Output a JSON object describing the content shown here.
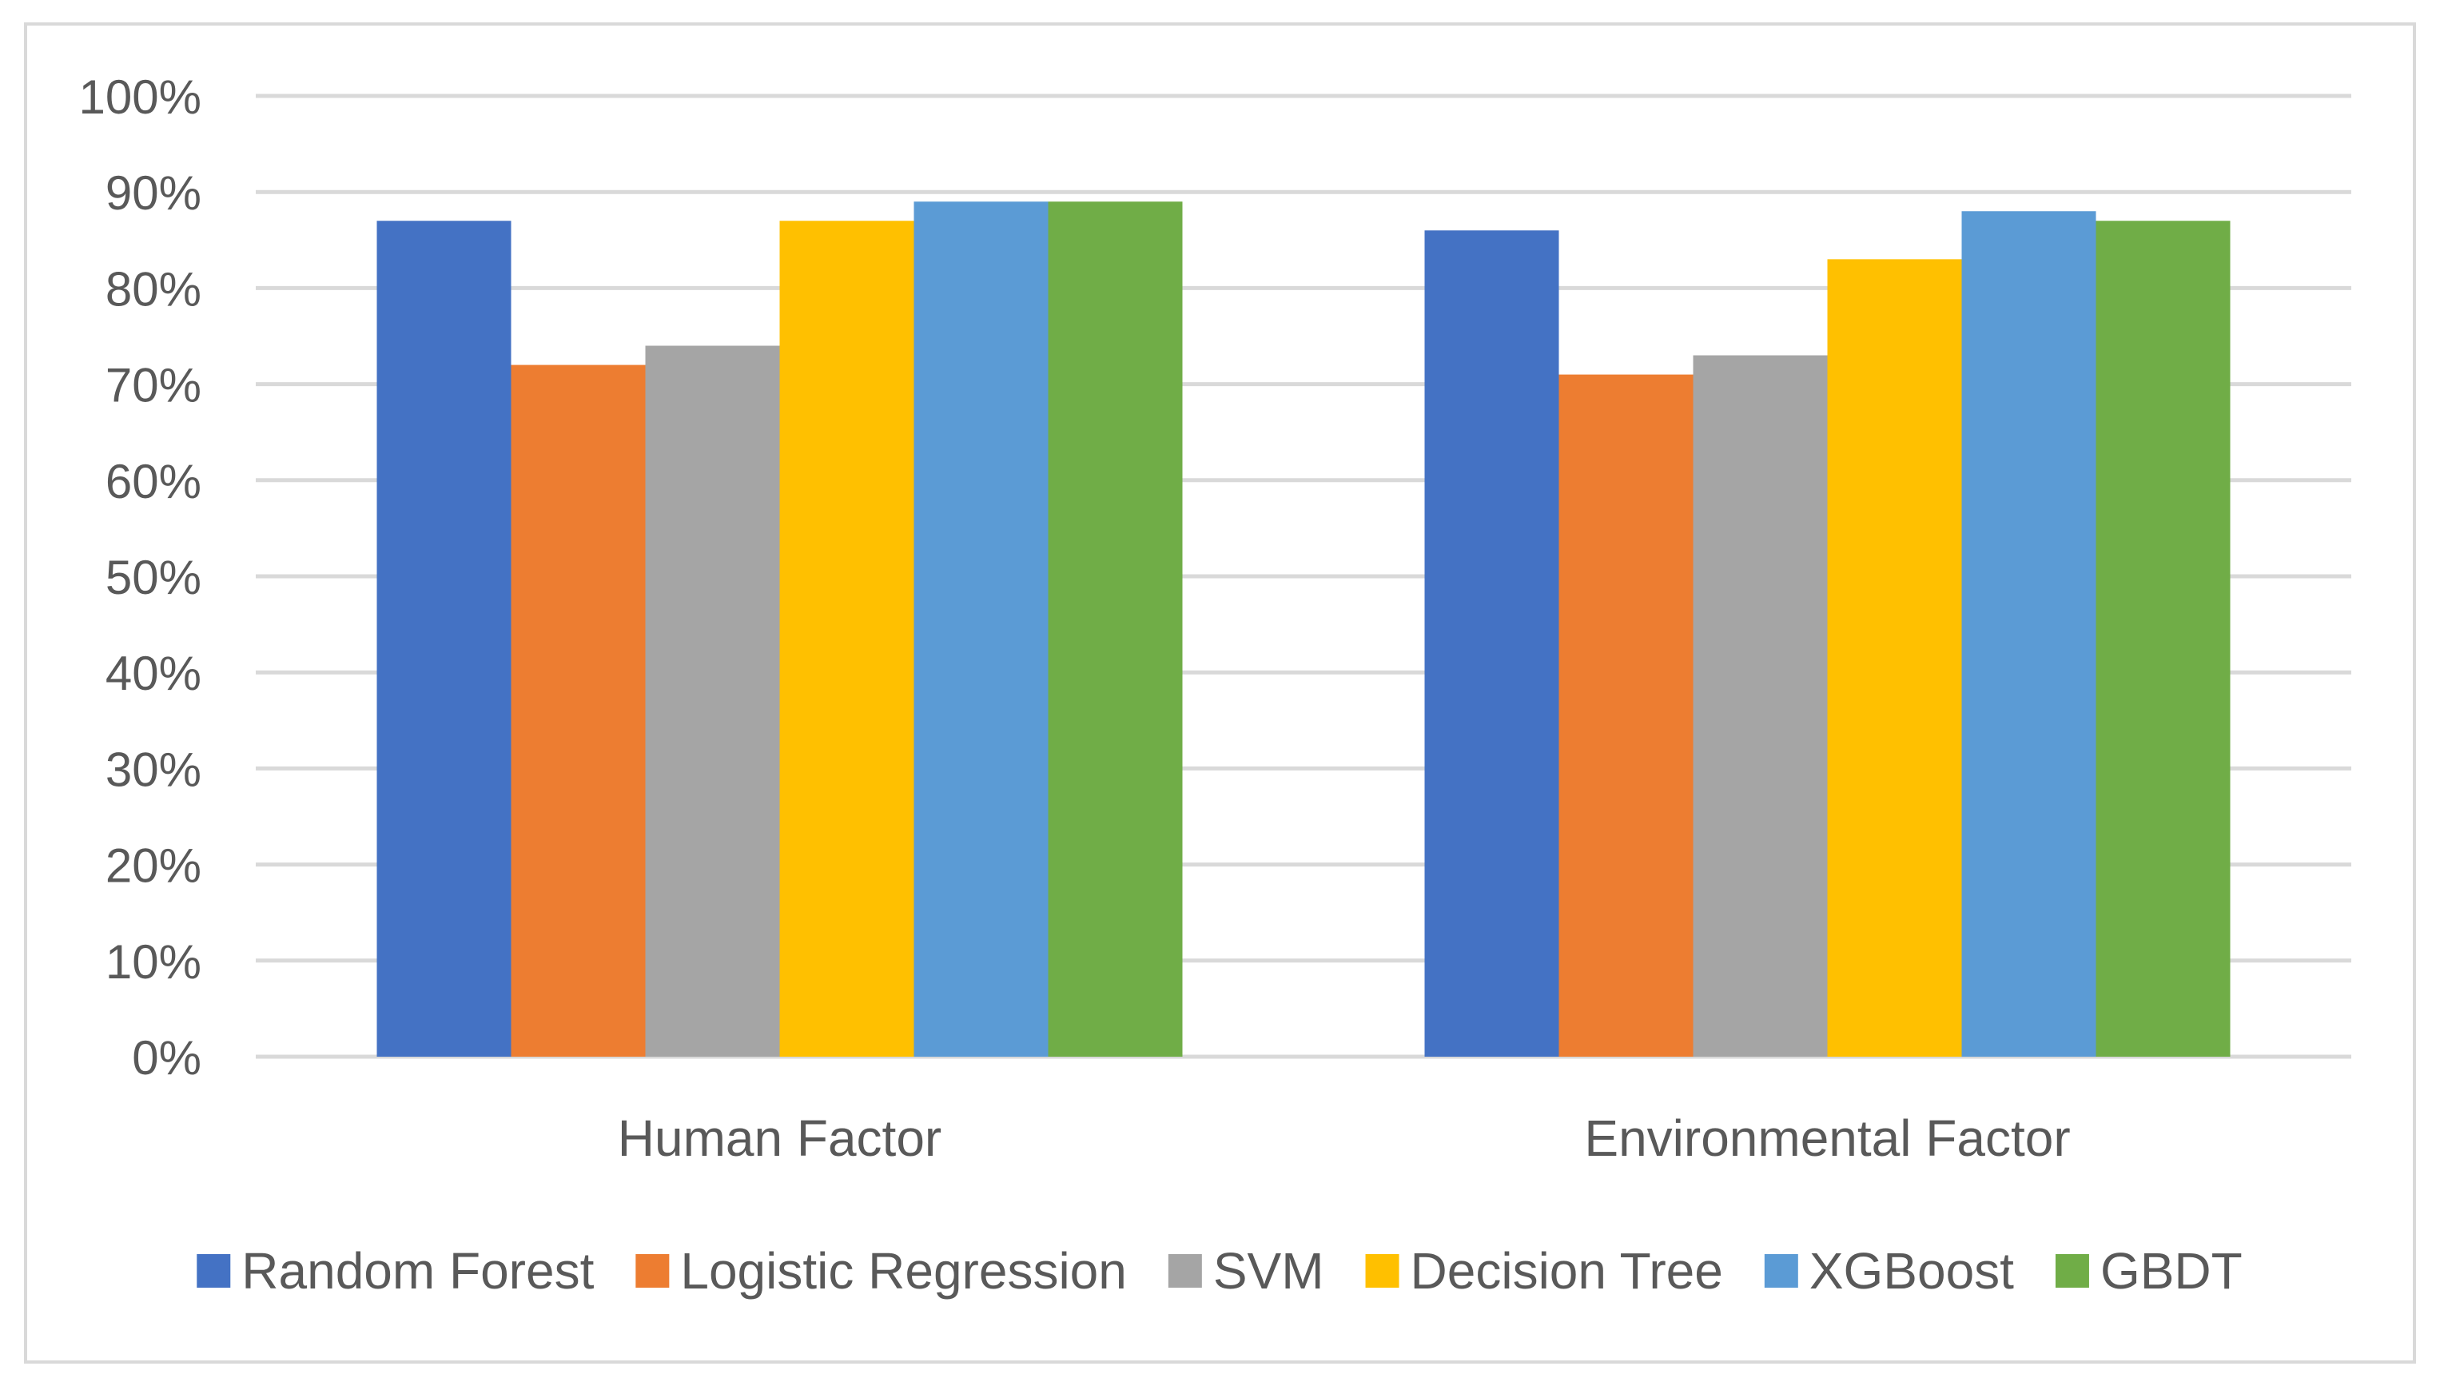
{
  "chart_data": {
    "type": "bar",
    "title": "",
    "xlabel": "",
    "ylabel": "",
    "ylim": [
      0,
      100
    ],
    "yticks": [
      0,
      10,
      20,
      30,
      40,
      50,
      60,
      70,
      80,
      90,
      100
    ],
    "ytick_labels": [
      "0%",
      "10%",
      "20%",
      "30%",
      "40%",
      "50%",
      "60%",
      "70%",
      "80%",
      "90%",
      "100%"
    ],
    "categories": [
      "Human Factor",
      "Environmental Factor"
    ],
    "series": [
      {
        "name": "Random Forest",
        "color": "#4472C4",
        "values": [
          87,
          86
        ]
      },
      {
        "name": "Logistic Regression",
        "color": "#ED7D31",
        "values": [
          72,
          71
        ]
      },
      {
        "name": "SVM",
        "color": "#A5A5A5",
        "values": [
          74,
          73
        ]
      },
      {
        "name": "Decision Tree",
        "color": "#FFC000",
        "values": [
          87,
          83
        ]
      },
      {
        "name": "XGBoost",
        "color": "#5B9BD5",
        "values": [
          89,
          88
        ]
      },
      {
        "name": "GBDT",
        "color": "#70AD47",
        "values": [
          89,
          87
        ]
      }
    ],
    "legend_position": "bottom",
    "grid": true
  },
  "colors": {
    "gridline": "#D9D9D9",
    "border": "#D9D9D9",
    "text": "#595959"
  }
}
